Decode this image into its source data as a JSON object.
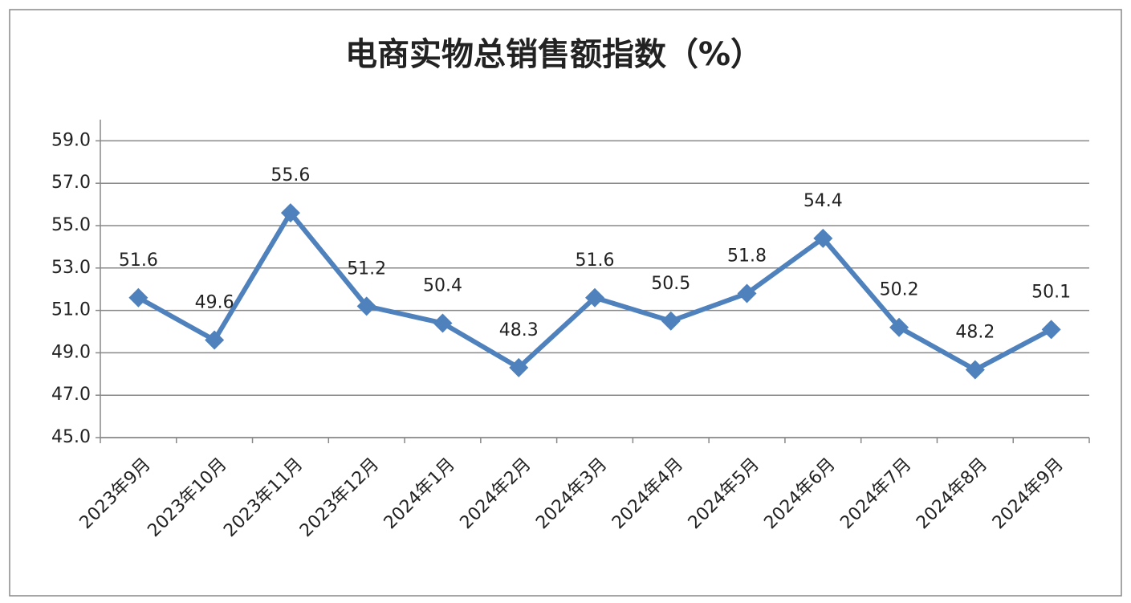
{
  "chart_data": {
    "type": "line",
    "title": "电商实物总销售额指数（%）",
    "categories": [
      "2023年9月",
      "2023年10月",
      "2023年11月",
      "2023年12月",
      "2024年1月",
      "2024年2月",
      "2024年3月",
      "2024年4月",
      "2024年5月",
      "2024年6月",
      "2024年7月",
      "2024年8月",
      "2024年9月"
    ],
    "series": [
      {
        "name": "电商实物总销售额指数",
        "color": "#4f81bd",
        "values": [
          51.6,
          49.6,
          55.6,
          51.2,
          50.4,
          48.3,
          51.6,
          50.5,
          51.8,
          54.4,
          50.2,
          48.2,
          50.1
        ]
      }
    ],
    "ylim": [
      45,
      60
    ],
    "yticks": [
      {
        "value": 45,
        "label": "45.0"
      },
      {
        "value": 47,
        "label": "47.0"
      },
      {
        "value": 49,
        "label": "49.0"
      },
      {
        "value": 51,
        "label": "51.0"
      },
      {
        "value": 53,
        "label": "53.0"
      },
      {
        "value": 55,
        "label": "55.0"
      },
      {
        "value": 57,
        "label": "57.0"
      },
      {
        "value": 59,
        "label": "59.0"
      }
    ],
    "grid": true
  }
}
